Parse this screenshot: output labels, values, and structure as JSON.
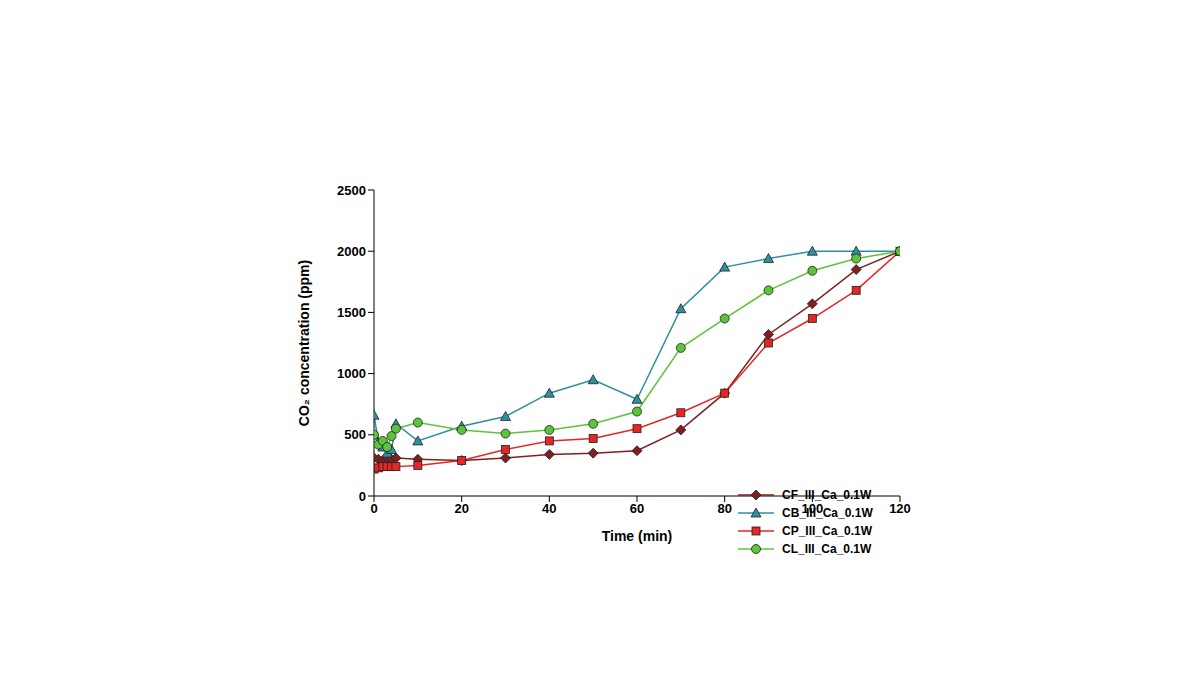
{
  "chart_data": {
    "type": "line",
    "x_label": "Time (min)",
    "y_label": "CO₂ concentration (ppm)",
    "x": [
      0,
      1,
      2,
      3,
      4,
      5,
      10,
      20,
      30,
      40,
      50,
      60,
      70,
      80,
      90,
      100,
      110,
      120
    ],
    "xlim": [
      0,
      120
    ],
    "xticks": [
      0,
      20,
      40,
      60,
      80,
      100,
      120
    ],
    "ylim": [
      0,
      2500
    ],
    "yticks": [
      0,
      500,
      1000,
      1500,
      2000,
      2500
    ],
    "grid": false,
    "legend": "lower right",
    "series": [
      {
        "name": "CF_III_Ca_0.1W",
        "color": "#7f1f1f",
        "marker": "diamond",
        "values": [
          310,
          300,
          290,
          310,
          300,
          310,
          300,
          290,
          310,
          340,
          350,
          370,
          540,
          840,
          1320,
          1570,
          1850,
          2000
        ]
      },
      {
        "name": "CB_III_Ca_0.1W",
        "color": "#2f8f9d",
        "marker": "triangle",
        "values": [
          660,
          440,
          400,
          350,
          380,
          590,
          450,
          570,
          650,
          840,
          950,
          790,
          1530,
          1870,
          1940,
          2000,
          2000,
          2000
        ]
      },
      {
        "name": "CP_III_Ca_0.1W",
        "color": "#e32626",
        "marker": "square",
        "values": [
          220,
          230,
          240,
          240,
          240,
          240,
          250,
          290,
          380,
          450,
          470,
          550,
          680,
          840,
          1250,
          1450,
          1680,
          2000
        ]
      },
      {
        "name": "CL_III_Ca_0.1W",
        "color": "#5cc43a",
        "marker": "circle",
        "values": [
          500,
          420,
          450,
          400,
          490,
          550,
          600,
          540,
          510,
          540,
          590,
          690,
          1210,
          1450,
          1680,
          1840,
          1940,
          2000
        ]
      }
    ]
  }
}
